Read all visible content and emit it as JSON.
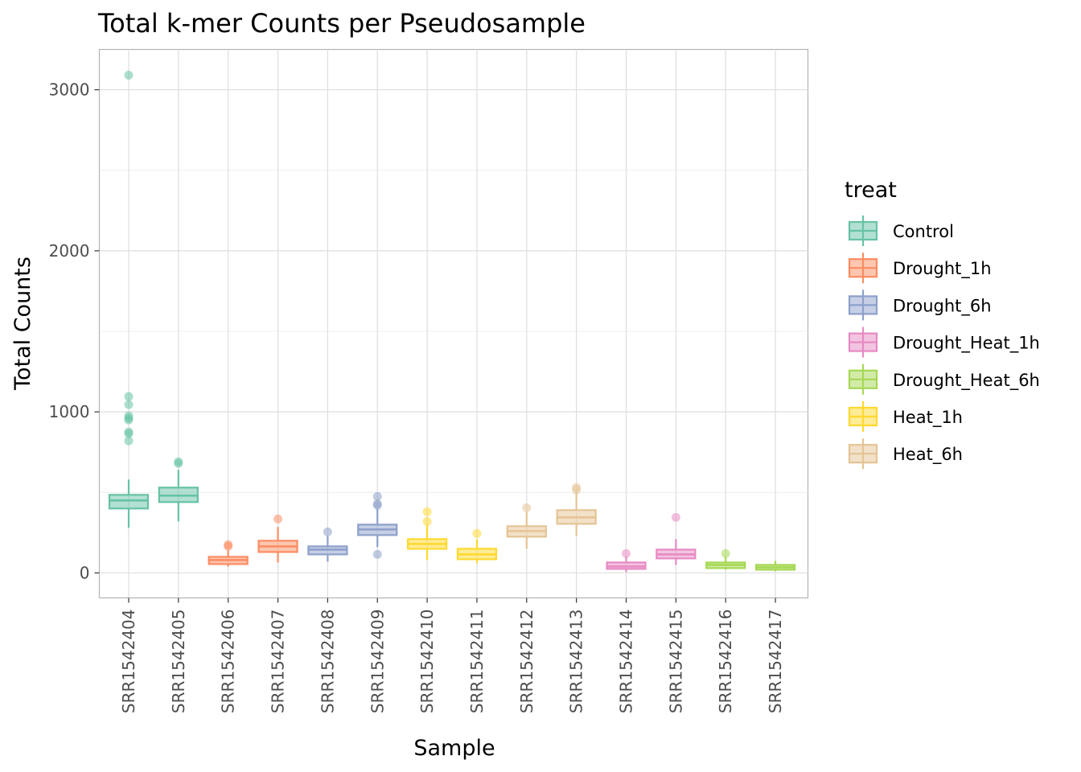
{
  "chart_data": {
    "type": "box",
    "title": "Total k-mer Counts per Pseudosample",
    "xlabel": "Sample",
    "ylabel": "Total Counts",
    "ylim": [
      -155,
      3250
    ],
    "yticks": [
      0,
      1000,
      2000,
      3000
    ],
    "grid": true,
    "legend": {
      "title": "treat",
      "placement": "right"
    },
    "treatments": [
      {
        "name": "Control",
        "color": "#66c2a5"
      },
      {
        "name": "Drought_1h",
        "color": "#fc8d62"
      },
      {
        "name": "Drought_6h",
        "color": "#8da0cb"
      },
      {
        "name": "Drought_Heat_1h",
        "color": "#e78ac3"
      },
      {
        "name": "Drought_Heat_6h",
        "color": "#a6d854"
      },
      {
        "name": "Heat_1h",
        "color": "#ffd92f"
      },
      {
        "name": "Heat_6h",
        "color": "#e5c494"
      }
    ],
    "samples": [
      {
        "name": "SRR1542404",
        "treat": "Control",
        "whisker_low": 280,
        "q1": 400,
        "median": 450,
        "q3": 485,
        "whisker_high": 580,
        "outliers": [
          3090,
          1095,
          1045,
          975,
          960,
          950,
          875,
          865,
          820
        ]
      },
      {
        "name": "SRR1542405",
        "treat": "Control",
        "whisker_low": 320,
        "q1": 440,
        "median": 480,
        "q3": 530,
        "whisker_high": 640,
        "outliers": [
          690,
          680
        ]
      },
      {
        "name": "SRR1542406",
        "treat": "Drought_1h",
        "whisker_low": 40,
        "q1": 55,
        "median": 80,
        "q3": 100,
        "whisker_high": 140,
        "outliers": [
          175,
          165
        ]
      },
      {
        "name": "SRR1542407",
        "treat": "Drought_1h",
        "whisker_low": 65,
        "q1": 130,
        "median": 165,
        "q3": 200,
        "whisker_high": 285,
        "outliers": [
          335
        ]
      },
      {
        "name": "SRR1542408",
        "treat": "Drought_6h",
        "whisker_low": 70,
        "q1": 115,
        "median": 145,
        "q3": 165,
        "whisker_high": 230,
        "outliers": [
          255
        ]
      },
      {
        "name": "SRR1542409",
        "treat": "Drought_6h",
        "whisker_low": 160,
        "q1": 235,
        "median": 270,
        "q3": 300,
        "whisker_high": 400,
        "outliers": [
          475,
          430,
          420,
          115
        ]
      },
      {
        "name": "SRR1542410",
        "treat": "Heat_1h",
        "whisker_low": 80,
        "q1": 150,
        "median": 180,
        "q3": 210,
        "whisker_high": 300,
        "outliers": [
          380,
          320
        ]
      },
      {
        "name": "SRR1542411",
        "treat": "Heat_1h",
        "whisker_low": 60,
        "q1": 85,
        "median": 115,
        "q3": 150,
        "whisker_high": 210,
        "outliers": [
          245
        ]
      },
      {
        "name": "SRR1542412",
        "treat": "Heat_6h",
        "whisker_low": 150,
        "q1": 225,
        "median": 260,
        "q3": 290,
        "whisker_high": 380,
        "outliers": [
          405
        ]
      },
      {
        "name": "SRR1542413",
        "treat": "Heat_6h",
        "whisker_low": 230,
        "q1": 305,
        "median": 345,
        "q3": 390,
        "whisker_high": 500,
        "outliers": [
          530,
          515
        ]
      },
      {
        "name": "SRR1542414",
        "treat": "Drought_Heat_1h",
        "whisker_low": 5,
        "q1": 25,
        "median": 40,
        "q3": 65,
        "whisker_high": 100,
        "outliers": [
          120
        ]
      },
      {
        "name": "SRR1542415",
        "treat": "Drought_Heat_1h",
        "whisker_low": 50,
        "q1": 90,
        "median": 115,
        "q3": 145,
        "whisker_high": 210,
        "outliers": [
          345
        ]
      },
      {
        "name": "SRR1542416",
        "treat": "Drought_Heat_6h",
        "whisker_low": 20,
        "q1": 30,
        "median": 50,
        "q3": 65,
        "whisker_high": 100,
        "outliers": [
          120
        ]
      },
      {
        "name": "SRR1542417",
        "treat": "Drought_Heat_6h",
        "whisker_low": 10,
        "q1": 20,
        "median": 35,
        "q3": 50,
        "whisker_high": 75,
        "outliers": []
      }
    ]
  }
}
